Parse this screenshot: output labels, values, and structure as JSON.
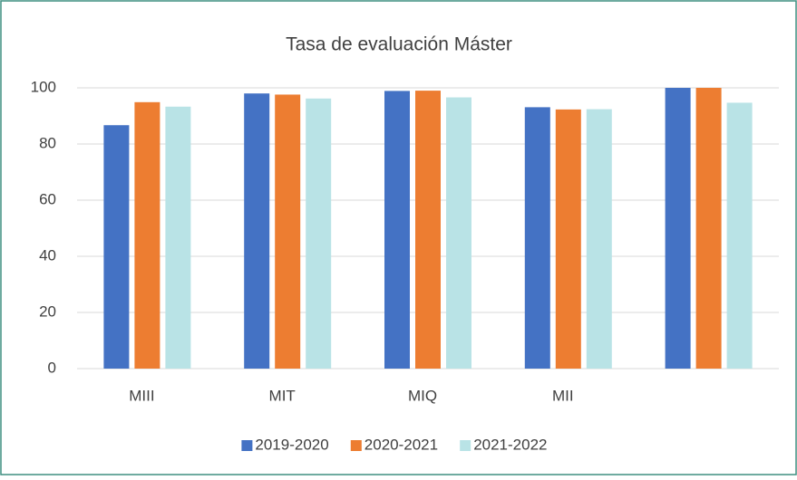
{
  "chart_data": {
    "type": "bar",
    "title": "Tasa de evaluación Máster",
    "categories": [
      "MIII",
      "MIT",
      "MIQ",
      "MII",
      null
    ],
    "series": [
      {
        "name": "2019-2020",
        "color": "#4472c4",
        "values": [
          86.7,
          98,
          98.9,
          93.1,
          100
        ]
      },
      {
        "name": "2020-2021",
        "color": "#ed7d31",
        "values": [
          94.9,
          97.6,
          99,
          92.3,
          100
        ]
      },
      {
        "name": "2021-2022",
        "color": "#b9e3e6",
        "values": [
          93.3,
          96.2,
          96.6,
          92.4,
          94.7
        ]
      }
    ],
    "ylim": [
      0,
      100
    ],
    "yticks": [
      0,
      20,
      40,
      60,
      80,
      100
    ],
    "grid": true,
    "legend": "bottom"
  }
}
